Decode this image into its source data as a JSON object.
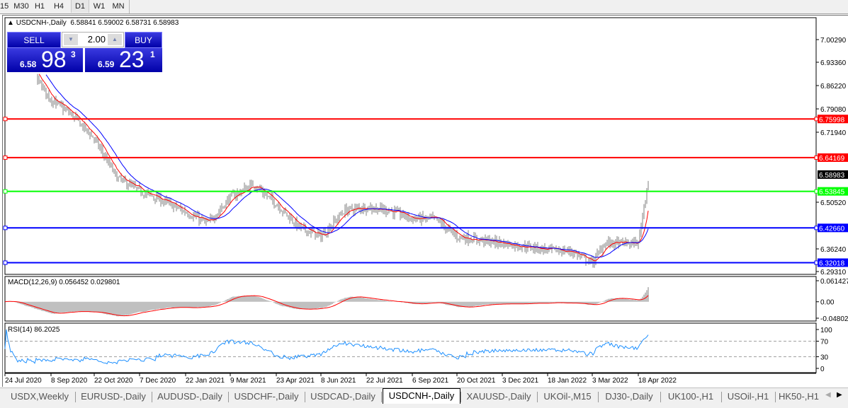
{
  "toolbar": {
    "timeframes": [
      "15",
      "M30",
      "H1",
      "H4",
      "D1",
      "W1",
      "MN"
    ],
    "active": "D1"
  },
  "chart": {
    "title": "USDCNH-,Daily",
    "ohlc": "6.58841 6.59002 6.58731 6.58983",
    "symbol": "USDCNH-",
    "timeframe": "Daily"
  },
  "trade_panel": {
    "sell_label": "SELL",
    "buy_label": "BUY",
    "lot": "2.00",
    "sell_prefix": "6.58",
    "sell_big": "98",
    "sell_sup": "3",
    "buy_prefix": "6.59",
    "buy_big": "23",
    "buy_sup": "1"
  },
  "price_axis": {
    "ticks": [
      "7.00290",
      "6.93360",
      "6.86220",
      "6.79080",
      "6.71940",
      "6.50520",
      "6.36240",
      "6.29310"
    ],
    "current_price": "6.58983"
  },
  "levels": [
    {
      "price": "6.75998",
      "color": "#ff0000"
    },
    {
      "price": "6.64169",
      "color": "#ff0000"
    },
    {
      "price": "6.53845",
      "color": "#00ff00"
    },
    {
      "price": "6.42660",
      "color": "#0000ff"
    },
    {
      "price": "6.32018",
      "color": "#0000ff"
    }
  ],
  "macd": {
    "label": "MACD(12,26,9) 0.056452 0.029801",
    "ticks": [
      "0.061427",
      "0.00",
      "-0.048025"
    ],
    "range": [
      -0.048025,
      0.061427
    ],
    "histogram_color": "#c0c0c0",
    "signal_color": "#ff0000"
  },
  "rsi": {
    "label": "RSI(14) 86.2025",
    "ticks": [
      "100",
      "70",
      "30",
      "0"
    ],
    "levels": [
      70,
      30
    ],
    "color": "#1e90ff"
  },
  "date_axis": {
    "ticks": [
      "24 Jul 2020",
      "8 Sep 2020",
      "22 Oct 2020",
      "7 Dec 2020",
      "22 Jan 2021",
      "9 Mar 2021",
      "23 Apr 2021",
      "8 Jun 2021",
      "22 Jul 2021",
      "6 Sep 2021",
      "20 Oct 2021",
      "3 Dec 2021",
      "18 Jan 2022",
      "3 Mar 2022",
      "18 Apr 2022"
    ]
  },
  "chart_data": {
    "type": "candlestick-bars",
    "ylim": [
      6.2931,
      7.0029
    ],
    "moving_averages": [
      {
        "color": "#ff0000"
      },
      {
        "color": "#0000ff"
      }
    ],
    "approx_closes": [
      {
        "date": "2020-07-24",
        "close": 6.99
      },
      {
        "date": "2020-08-16",
        "close": 6.92
      },
      {
        "date": "2020-09-08",
        "close": 6.82
      },
      {
        "date": "2020-09-30",
        "close": 6.77
      },
      {
        "date": "2020-10-22",
        "close": 6.7
      },
      {
        "date": "2020-11-14",
        "close": 6.58
      },
      {
        "date": "2020-12-07",
        "close": 6.54
      },
      {
        "date": "2020-12-30",
        "close": 6.51
      },
      {
        "date": "2021-01-22",
        "close": 6.475
      },
      {
        "date": "2021-02-14",
        "close": 6.44
      },
      {
        "date": "2021-03-09",
        "close": 6.52
      },
      {
        "date": "2021-04-01",
        "close": 6.56
      },
      {
        "date": "2021-04-23",
        "close": 6.5
      },
      {
        "date": "2021-05-16",
        "close": 6.43
      },
      {
        "date": "2021-06-08",
        "close": 6.4
      },
      {
        "date": "2021-07-01",
        "close": 6.48
      },
      {
        "date": "2021-07-22",
        "close": 6.49
      },
      {
        "date": "2021-08-14",
        "close": 6.48
      },
      {
        "date": "2021-09-06",
        "close": 6.455
      },
      {
        "date": "2021-09-28",
        "close": 6.455
      },
      {
        "date": "2021-10-20",
        "close": 6.4
      },
      {
        "date": "2021-11-11",
        "close": 6.39
      },
      {
        "date": "2021-12-03",
        "close": 6.38
      },
      {
        "date": "2021-12-26",
        "close": 6.37
      },
      {
        "date": "2022-01-18",
        "close": 6.36
      },
      {
        "date": "2022-02-10",
        "close": 6.355
      },
      {
        "date": "2022-03-03",
        "close": 6.32
      },
      {
        "date": "2022-03-16",
        "close": 6.38
      },
      {
        "date": "2022-04-03",
        "close": 6.38
      },
      {
        "date": "2022-04-18",
        "close": 6.38
      },
      {
        "date": "2022-04-23",
        "close": 6.48
      },
      {
        "date": "2022-04-26",
        "close": 6.54
      },
      {
        "date": "2022-04-29",
        "close": 6.58983
      }
    ]
  },
  "tabs": [
    "USDX,Weekly",
    "EURUSD-,Daily",
    "AUDUSD-,Daily",
    "USDCHF-,Daily",
    "USDCAD-,Daily",
    "USDCNH-,Daily",
    "XAUUSD-,Daily",
    "UKOil-,M15",
    "DJ30-,Daily",
    "UK100-,H1",
    "USOil-,H1",
    "HK50-,H1"
  ],
  "active_tab": "USDCNH-,Daily"
}
